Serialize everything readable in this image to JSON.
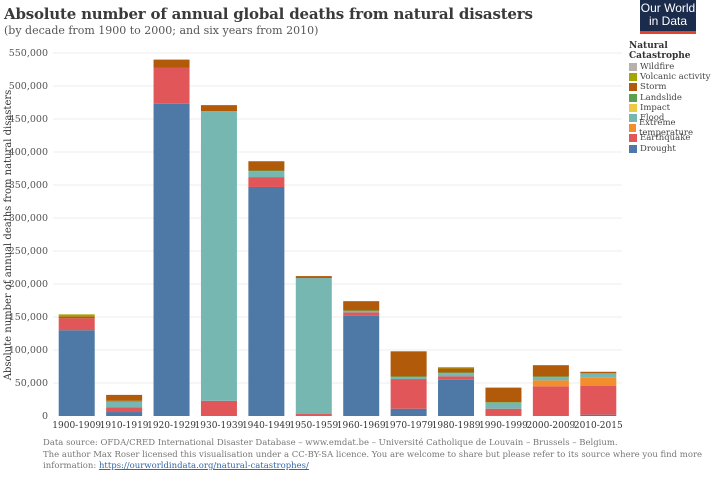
{
  "header": {
    "title": "Absolute number of annual global deaths from natural disasters",
    "subtitle": "(by decade from 1900 to 2000; and six years from 2010)",
    "logo_line1": "Our World",
    "logo_line2": "in Data"
  },
  "legend": {
    "title": "Natural Catastrophe",
    "items": [
      {
        "label": "Wildfire",
        "color": "#b8b0ac"
      },
      {
        "label": "Volcanic activity",
        "color": "#a3a500"
      },
      {
        "label": "Storm",
        "color": "#b05a0a"
      },
      {
        "label": "Landslide",
        "color": "#59a14f"
      },
      {
        "label": "Impact",
        "color": "#edc948"
      },
      {
        "label": "Flood",
        "color": "#76b7b2"
      },
      {
        "label": "Extreme temperature",
        "color": "#f28e2b"
      },
      {
        "label": "Earthquake",
        "color": "#e15759"
      },
      {
        "label": "Drought",
        "color": "#4e79a7"
      }
    ]
  },
  "chart_data": {
    "type": "bar",
    "stacked": true,
    "title": "Absolute number of annual global deaths from natural disasters",
    "subtitle": "(by decade from 1900 to 2000; and six years from 2010)",
    "xlabel": "",
    "ylabel": "Absolute number of annual deaths from natural disasters",
    "ylim": [
      0,
      550000
    ],
    "yticks": [
      0,
      50000,
      100000,
      150000,
      200000,
      250000,
      300000,
      350000,
      400000,
      450000,
      500000,
      550000
    ],
    "ytick_labels": [
      "0",
      "50,000",
      "100,000",
      "150,000",
      "200,000",
      "250,000",
      "300,000",
      "350,000",
      "400,000",
      "450,000",
      "500,000",
      "550,000"
    ],
    "grid": true,
    "legend_position": "top-right",
    "categories": [
      "1900-1909",
      "1910-1919",
      "1920-1929",
      "1930-1939",
      "1940-1949",
      "1950-1959",
      "1960-1969",
      "1970-1979",
      "1980-1989",
      "1990-1999",
      "2000-2009",
      "2010-2015"
    ],
    "series": [
      {
        "name": "Drought",
        "color": "#4e79a7",
        "values": [
          130000,
          6000,
          473000,
          0,
          347000,
          0,
          152000,
          11000,
          55000,
          1000,
          0,
          2000
        ]
      },
      {
        "name": "Earthquake",
        "color": "#e15759",
        "values": [
          18000,
          7000,
          55000,
          23000,
          15000,
          3000,
          5000,
          45000,
          5000,
          10000,
          45000,
          44000
        ]
      },
      {
        "name": "Extreme temperature",
        "color": "#f28e2b",
        "values": [
          0,
          0,
          0,
          0,
          0,
          0,
          0,
          0,
          0,
          0,
          9000,
          12000
        ]
      },
      {
        "name": "Flood",
        "color": "#76b7b2",
        "values": [
          0,
          9000,
          0,
          439000,
          9000,
          206000,
          2000,
          3000,
          5000,
          9000,
          5000,
          6000
        ]
      },
      {
        "name": "Impact",
        "color": "#edc948",
        "values": [
          0,
          0,
          0,
          0,
          0,
          0,
          0,
          0,
          0,
          0,
          0,
          0
        ]
      },
      {
        "name": "Landslide",
        "color": "#59a14f",
        "values": [
          0,
          1000,
          0,
          0,
          1000,
          0,
          1000,
          1000,
          1000,
          1000,
          1000,
          1000
        ]
      },
      {
        "name": "Storm",
        "color": "#b05a0a",
        "values": [
          3000,
          9000,
          12000,
          9000,
          14000,
          3000,
          14000,
          38000,
          6000,
          22000,
          17000,
          2000
        ]
      },
      {
        "name": "Volcanic activity",
        "color": "#a3a500",
        "values": [
          3000,
          0,
          0,
          0,
          0,
          0,
          0,
          0,
          2000,
          0,
          0,
          0
        ]
      },
      {
        "name": "Wildfire",
        "color": "#b8b0ac",
        "values": [
          0,
          0,
          0,
          0,
          0,
          0,
          0,
          0,
          0,
          0,
          0,
          0
        ]
      }
    ]
  },
  "footer": {
    "line1": "Data source: OFDA/CRED International Disaster Database – www.emdat.be – Université Catholique de Louvain – Brussels – Belgium.",
    "line2": "The author Max Roser licensed this visualisation under a CC-BY-SA licence. You are welcome to share but please refer to its source where you find more",
    "line3_prefix": "information: ",
    "link": "https://ourworldindata.org/natural-catastrophes/"
  }
}
